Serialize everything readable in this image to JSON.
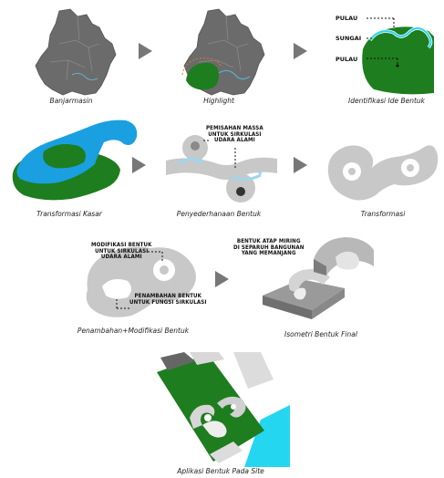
{
  "steps": [
    {
      "caption": "Banjarmasin"
    },
    {
      "caption": "Highlight"
    },
    {
      "caption": "Identifikasi Ide Bentuk"
    },
    {
      "caption": "Transformasi Kasar"
    },
    {
      "caption": "Penyederhanaan Bentuk"
    },
    {
      "caption": "Transformasi"
    },
    {
      "caption": "Penambahan+Modifikasi Bentuk"
    },
    {
      "caption": "Isometri Bentuk Final"
    },
    {
      "caption": "Aplikasi Bentuk Pada Site"
    }
  ],
  "identifikasi_labels": {
    "pulau_top": "PULAU",
    "sungai": "SUNGAI",
    "pulau_bottom": "PULAU"
  },
  "notes": {
    "pemisahan": "PEMISAHAN MASSA\nUNTUK SIRKULASI\nUDARA ALAMI",
    "modifikasi": "MODIFIKASI BENTUK\nUNTUK SIRKULASI\nUDARA ALAMI",
    "penambahan": "PENAMBAHAN BENTUK\nUNTUK FUNGSI SIRKULASI",
    "atap": "BENTUK ATAP MIRING\nDI SEPARUH BANGUNAN\nYANG MEMANJANG"
  },
  "colors": {
    "green": "#1e7d1e",
    "blue": "#1aa0e0",
    "cyan": "#25d6f0",
    "grey": "#c8c8c8",
    "dark": "#6b6b6b",
    "arrow": "#777777"
  }
}
